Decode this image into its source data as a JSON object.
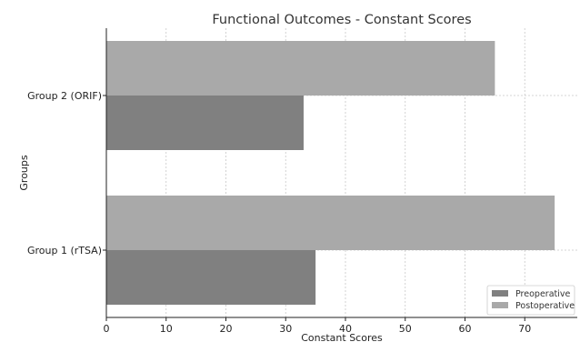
{
  "chart_data": {
    "type": "bar",
    "orientation": "horizontal",
    "title": "Functional Outcomes - Constant Scores",
    "xlabel": "Constant Scores",
    "ylabel": "Groups",
    "categories": [
      "Group 1 (rTSA)",
      "Group 2 (ORIF)"
    ],
    "series": [
      {
        "name": "Preoperative",
        "values": [
          35,
          33
        ],
        "color": "#808080"
      },
      {
        "name": "Postoperative",
        "values": [
          75,
          65
        ],
        "color": "#a9a9a9"
      }
    ],
    "xlim": [
      0,
      80
    ],
    "xticks": [
      0,
      10,
      20,
      30,
      40,
      50,
      60,
      70
    ],
    "grid": true,
    "grid_style": "dotted",
    "legend_position": "lower-right"
  }
}
